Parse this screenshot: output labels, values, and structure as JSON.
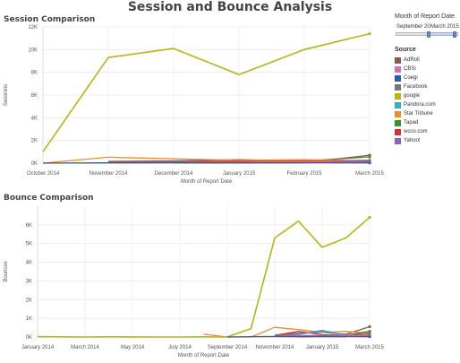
{
  "header": {
    "title": "Session and Bounce Analysis"
  },
  "filter": {
    "title": "Month of Report Date",
    "from_label": "September 20",
    "to_label": "March 2015"
  },
  "legend": {
    "title": "Source",
    "items": [
      {
        "name": "AdRoll",
        "color": "#8b5a4a"
      },
      {
        "name": "CBSi",
        "color": "#d66fb4"
      },
      {
        "name": "Coegi",
        "color": "#2163a8"
      },
      {
        "name": "Facebook",
        "color": "#777777"
      },
      {
        "name": "google",
        "color": "#b5b518"
      },
      {
        "name": "Pandora.com",
        "color": "#3fa9c8"
      },
      {
        "name": "Star Tribune",
        "color": "#ee8c2c"
      },
      {
        "name": "Tapad",
        "color": "#3a8f32"
      },
      {
        "name": "wcco.com",
        "color": "#cc3333"
      },
      {
        "name": "Yahoo!",
        "color": "#8a63c4"
      }
    ]
  },
  "chart_data": [
    {
      "type": "line",
      "title": "Session Comparison",
      "xlabel": "Month of Report Date",
      "ylabel": "Sessions",
      "ylim": [
        0,
        12000
      ],
      "y_ticks": [
        "0K",
        "2K",
        "4K",
        "6K",
        "8K",
        "10K",
        "12K"
      ],
      "x_ticks": [
        "October 2014",
        "November 2014",
        "December 2014",
        "January 2015",
        "February 2015",
        "March 2015"
      ],
      "x_domain": [
        "2014-10",
        "2015-03"
      ],
      "series": [
        {
          "name": "google",
          "color": "#b5b518",
          "points": [
            [
              "2014-10",
              1000
            ],
            [
              "2014-11",
              9300
            ],
            [
              "2014-12",
              10100
            ],
            [
              "2015-01",
              7800
            ],
            [
              "2015-02",
              10000
            ],
            [
              "2015-03",
              11400
            ]
          ]
        },
        {
          "name": "Star Tribune",
          "color": "#ee8c2c",
          "points": [
            [
              "2014-10",
              0
            ],
            [
              "2014-11",
              520
            ],
            [
              "2014-12",
              380
            ],
            [
              "2015-01",
              250
            ],
            [
              "2015-02",
              300
            ],
            [
              "2015-03",
              200
            ]
          ]
        },
        {
          "name": "AdRoll",
          "color": "#8b5a4a",
          "points": [
            [
              "2014-11",
              150
            ],
            [
              "2014-12",
              200
            ],
            [
              "2015-01",
              300
            ],
            [
              "2015-02",
              180
            ],
            [
              "2015-03",
              550
            ]
          ]
        },
        {
          "name": "Facebook",
          "color": "#777777",
          "points": [
            [
              "2014-11",
              100
            ],
            [
              "2014-12",
              120
            ],
            [
              "2015-01",
              200
            ],
            [
              "2015-02",
              150
            ],
            [
              "2015-03",
              250
            ]
          ]
        },
        {
          "name": "wcco.com",
          "color": "#cc3333",
          "points": [
            [
              "2014-11",
              50
            ],
            [
              "2014-12",
              80
            ],
            [
              "2015-01",
              100
            ],
            [
              "2015-02",
              60
            ],
            [
              "2015-03",
              150
            ]
          ]
        },
        {
          "name": "Yahoo!",
          "color": "#8a63c4",
          "points": [
            [
              "2014-11",
              30
            ],
            [
              "2014-12",
              60
            ],
            [
              "2015-01",
              40
            ],
            [
              "2015-02",
              80
            ],
            [
              "2015-03",
              100
            ]
          ]
        },
        {
          "name": "CBSi",
          "color": "#d66fb4",
          "points": [
            [
              "2014-11",
              20
            ],
            [
              "2014-12",
              40
            ],
            [
              "2015-01",
              60
            ],
            [
              "2015-02",
              100
            ],
            [
              "2015-03",
              50
            ]
          ]
        },
        {
          "name": "Coegi",
          "color": "#2163a8",
          "points": [
            [
              "2014-10",
              0
            ],
            [
              "2014-11",
              20
            ],
            [
              "2014-12",
              30
            ],
            [
              "2015-01",
              20
            ],
            [
              "2015-02",
              30
            ],
            [
              "2015-03",
              20
            ]
          ]
        },
        {
          "name": "Tapad",
          "color": "#3a8f32",
          "points": [
            [
              "2014-12",
              10
            ],
            [
              "2015-01",
              20
            ],
            [
              "2015-02",
              30
            ],
            [
              "2015-03",
              700
            ]
          ]
        }
      ]
    },
    {
      "type": "line",
      "title": "Bounce Comparison",
      "xlabel": "Month of Report Date",
      "ylabel": "Bounces",
      "ylim": [
        0,
        7000
      ],
      "y_ticks": [
        "0K",
        "1K",
        "2K",
        "3K",
        "4K",
        "5K",
        "6K"
      ],
      "x_ticks": [
        "January 2014",
        "March 2014",
        "May 2014",
        "July 2014",
        "September 2014",
        "November 2014",
        "January 2015",
        "March 2015"
      ],
      "x_domain": [
        "2014-01",
        "2015-03"
      ],
      "series": [
        {
          "name": "google",
          "color": "#b5b518",
          "points": [
            [
              "2014-01",
              20
            ],
            [
              "2014-02",
              10
            ],
            [
              "2014-03",
              0
            ],
            [
              "2014-04",
              10
            ],
            [
              "2014-05",
              5
            ],
            [
              "2014-06",
              0
            ],
            [
              "2014-07",
              0
            ],
            [
              "2014-08",
              10
            ],
            [
              "2014-09",
              0
            ],
            [
              "2014-10",
              450
            ],
            [
              "2014-11",
              5300
            ],
            [
              "2014-12",
              6200
            ],
            [
              "2015-01",
              4800
            ],
            [
              "2015-02",
              5300
            ],
            [
              "2015-03",
              6400
            ]
          ]
        },
        {
          "name": "Star Tribune",
          "color": "#ee8c2c",
          "points": [
            [
              "2014-08",
              150
            ],
            [
              "2014-09",
              0
            ],
            [
              "2014-10",
              0
            ],
            [
              "2014-11",
              520
            ],
            [
              "2014-12",
              400
            ],
            [
              "2015-01",
              250
            ],
            [
              "2015-02",
              300
            ],
            [
              "2015-03",
              200
            ]
          ]
        },
        {
          "name": "AdRoll",
          "color": "#8b5a4a",
          "points": [
            [
              "2014-11",
              100
            ],
            [
              "2014-12",
              200
            ],
            [
              "2015-01",
              250
            ],
            [
              "2015-02",
              150
            ],
            [
              "2015-03",
              550
            ]
          ]
        },
        {
          "name": "Facebook",
          "color": "#777777",
          "points": [
            [
              "2014-11",
              50
            ],
            [
              "2014-12",
              150
            ],
            [
              "2015-01",
              350
            ],
            [
              "2015-02",
              100
            ],
            [
              "2015-03",
              300
            ]
          ]
        },
        {
          "name": "wcco.com",
          "color": "#cc3333",
          "points": [
            [
              "2014-11",
              80
            ],
            [
              "2014-12",
              300
            ],
            [
              "2015-01",
              120
            ],
            [
              "2015-02",
              100
            ],
            [
              "2015-03",
              150
            ]
          ]
        },
        {
          "name": "Yahoo!",
          "color": "#8a63c4",
          "points": [
            [
              "2014-11",
              30
            ],
            [
              "2014-12",
              80
            ],
            [
              "2015-01",
              60
            ],
            [
              "2015-02",
              100
            ],
            [
              "2015-03",
              80
            ]
          ]
        },
        {
          "name": "Pandora.com",
          "color": "#3fa9c8",
          "points": [
            [
              "2014-11",
              40
            ],
            [
              "2014-12",
              150
            ],
            [
              "2015-01",
              300
            ],
            [
              "2015-02",
              120
            ],
            [
              "2015-03",
              100
            ]
          ]
        },
        {
          "name": "CBSi",
          "color": "#d66fb4",
          "points": [
            [
              "2014-11",
              20
            ],
            [
              "2014-12",
              40
            ],
            [
              "2015-01",
              60
            ],
            [
              "2015-02",
              80
            ],
            [
              "2015-03",
              50
            ]
          ]
        },
        {
          "name": "Coegi",
          "color": "#2163a8",
          "points": [
            [
              "2014-09",
              0
            ],
            [
              "2014-10",
              20
            ],
            [
              "2014-11",
              30
            ],
            [
              "2014-12",
              20
            ],
            [
              "2015-01",
              40
            ],
            [
              "2015-02",
              30
            ],
            [
              "2015-03",
              20
            ]
          ]
        },
        {
          "name": "Tapad",
          "color": "#3a8f32",
          "points": [
            [
              "2014-12",
              10
            ],
            [
              "2015-01",
              20
            ],
            [
              "2015-02",
              10
            ],
            [
              "2015-03",
              300
            ]
          ]
        }
      ]
    }
  ]
}
